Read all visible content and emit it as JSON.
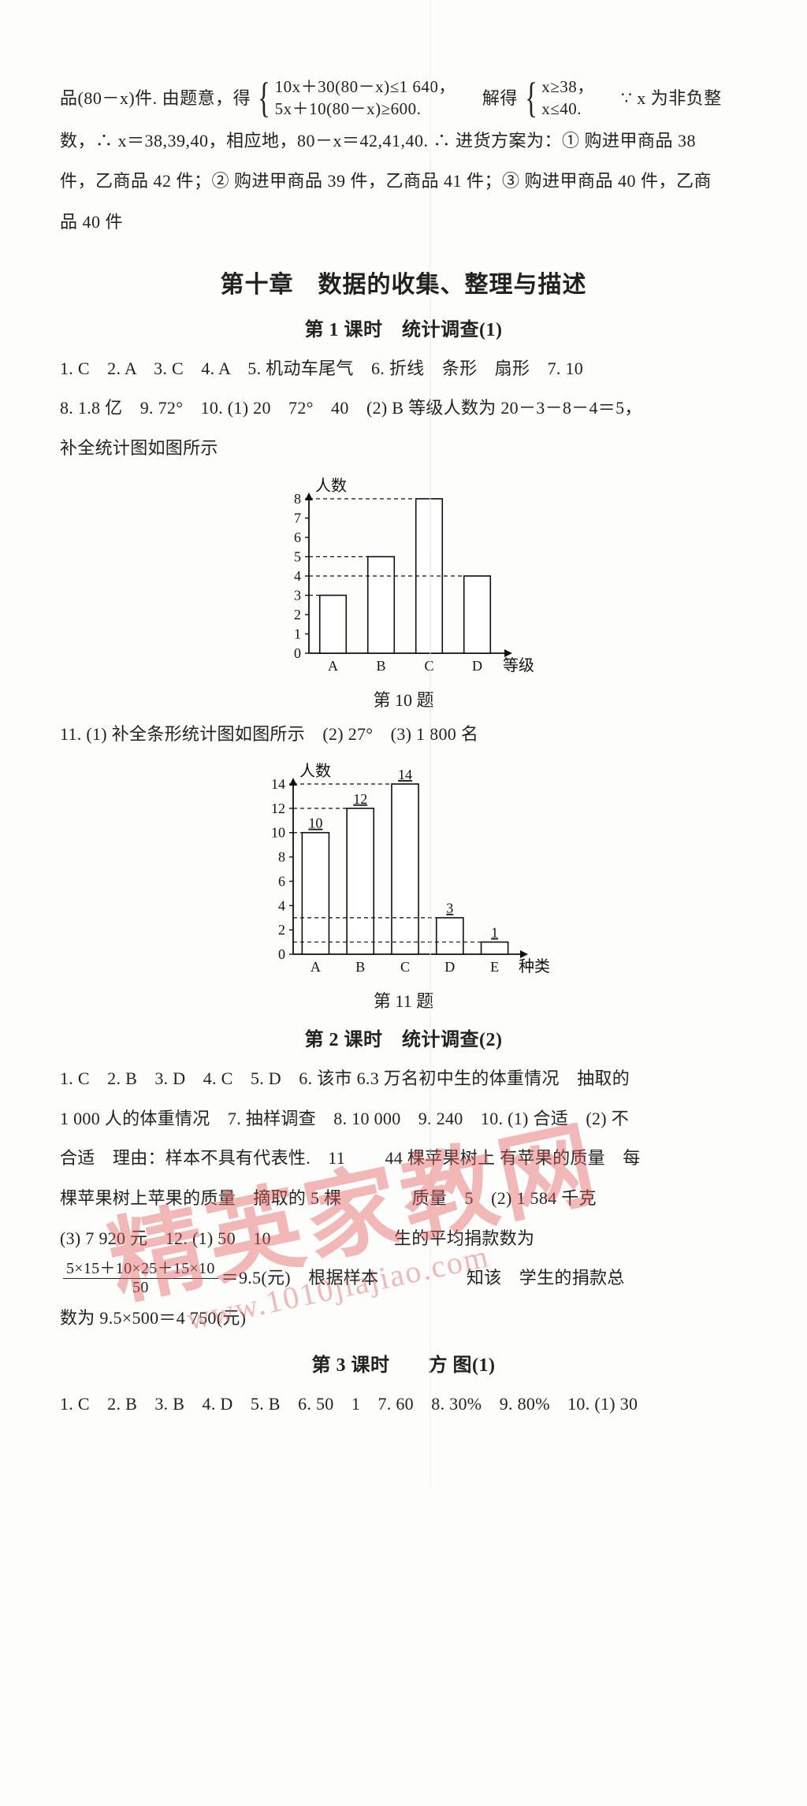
{
  "intro": {
    "pre": "品(80－x)件. 由题意，得",
    "brace1_line1": "10x＋30(80－x)≤1 640，",
    "brace1_line2": "5x＋10(80－x)≥600.",
    "middle": "解得",
    "brace2_line1": "x≥38，",
    "brace2_line2": "x≤40.",
    "tail": "∵  x 为非负整",
    "line2": "数，∴  x＝38,39,40，相应地，80－x＝42,41,40.  ∴ 进货方案为：① 购进甲商品 38",
    "line3": "件，乙商品 42 件；② 购进甲商品 39 件，乙商品 41 件；③ 购进甲商品 40 件，乙商",
    "line4": "品 40 件"
  },
  "chapter_title": "第十章　数据的收集、整理与描述",
  "lesson1": {
    "title": "第 1 课时　统计调查(1)",
    "answers_a": "1. C　2. A　3. C　4. A　5. 机动车尾气　6. 折线　条形　扇形　7. 10",
    "answers_b": "8. 1.8 亿　9. 72°　10. (1) 20　72°　40　(2) B 等级人数为 20－3－8－4＝5，",
    "answers_c": "补全统计图如图所示"
  },
  "chart10": {
    "type": "bar",
    "categories": [
      "A",
      "B",
      "C",
      "D"
    ],
    "values": [
      3,
      5,
      8,
      4
    ],
    "yticks": [
      0,
      1,
      2,
      3,
      4,
      5,
      6,
      7,
      8
    ],
    "y_label": "人数",
    "x_label": "等级",
    "caption": "第 10 题",
    "bar_fill": "#ffffff",
    "bar_stroke": "#111111",
    "axis_color": "#111111",
    "dash_color": "#111111",
    "background_color": "#fdfdfb",
    "label_fontsize": 18,
    "bar_width": 0.55
  },
  "q11_line": "11. (1) 补全条形统计图如图所示　(2) 27°　(3) 1 800 名",
  "chart11": {
    "type": "bar",
    "categories": [
      "A",
      "B",
      "C",
      "D",
      "E"
    ],
    "values": [
      10,
      12,
      14,
      3,
      1
    ],
    "yticks": [
      0,
      2,
      4,
      6,
      8,
      10,
      12,
      14
    ],
    "y_label": "人数",
    "x_label": "种类",
    "caption": "第 11 题",
    "bar_fill": "#ffffff",
    "bar_stroke": "#111111",
    "axis_color": "#111111",
    "dash_color": "#111111",
    "background_color": "#fdfdfb",
    "label_fontsize": 18,
    "bar_width": 0.6,
    "value_labels": true
  },
  "lesson2": {
    "title": "第 2 课时　统计调查(2)",
    "answers_a": "1. C　2. B　3. D　4. C　5. D　6. 该市 6.3 万名初中生的体重情况　抽取的",
    "answers_b": "1 000 人的体重情况　7. 抽样调查　8. 10 000　9. 240　10. (1) 合适　(2) 不",
    "answers_c": "合适　理由：样本不具有代表性.　11 　　44 棵苹果树上 有苹果的质量　每",
    "answers_d": "棵苹果树上苹果的质量　摘取的 5 棵　　　　质量　5　(2) 1 584 千克",
    "answers_e_pre": "(3) 7 920 元　12. (1) 50　10　　　　　　　生的平均捐款数为",
    "frac_num": "5×15＋10×25＋15×10",
    "frac_den": "50",
    "answers_f_post": "＝9.5(元)　根据样本　　　　　知该　学生的捐款总",
    "answers_g": "数为 9.5×500＝4 750(元)"
  },
  "lesson3": {
    "title": "第 3 课时　　方 图(1)",
    "answers_a": "1. C　2. B　3. B　4. D　5. B　6. 50　1　7. 60　8. 30%　9. 80%　10. (1) 30"
  },
  "watermark": {
    "cn": "精英家教网",
    "en": "www.1010jiajiao.com"
  }
}
